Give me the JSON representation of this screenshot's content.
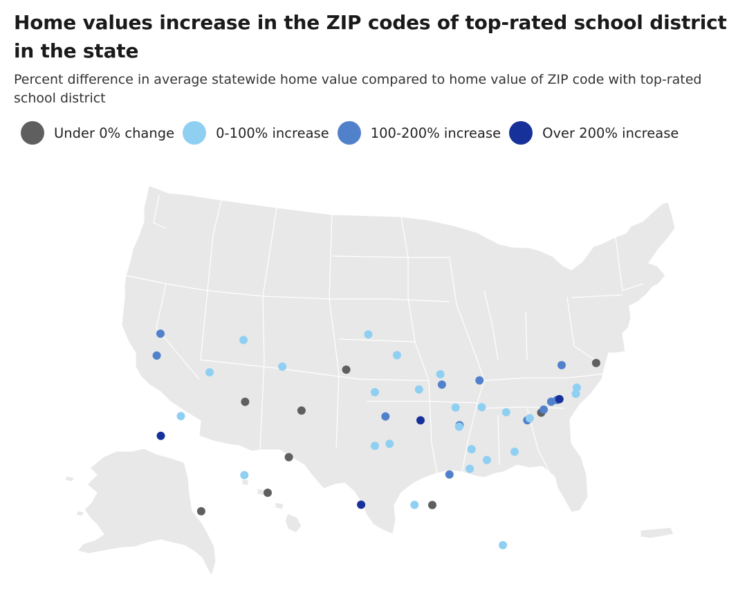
{
  "title": "Home values increase in the ZIP codes of top-rated school district in the state",
  "subtitle": "Percent difference in average statewide home value compared to home value of ZIP code with top-rated school district",
  "legend": [
    {
      "key": "under0",
      "label": "Under 0% change",
      "color": "#5f5f5f"
    },
    {
      "key": "0to100",
      "label": "0-100% increase",
      "color": "#8fd0f2"
    },
    {
      "key": "100to200",
      "label": "100-200% increase",
      "color": "#5281cc"
    },
    {
      "key": "over200",
      "label": "Over 200% increase",
      "color": "#17319a"
    }
  ],
  "map": {
    "region": "United States",
    "base_color": "#e8e8e8",
    "border_color": "#ffffff"
  },
  "locations": [
    {
      "state": "Washington",
      "lat": 47.6,
      "lon": -122.1,
      "category": "100to200"
    },
    {
      "state": "Oregon",
      "lat": 45.5,
      "lon": -122.6,
      "category": "100to200"
    },
    {
      "state": "California",
      "lat": 37.7,
      "lon": -122.3,
      "category": "over200"
    },
    {
      "state": "Nevada",
      "lat": 39.5,
      "lon": -119.8,
      "category": "0to100"
    },
    {
      "state": "Idaho",
      "lat": 43.6,
      "lon": -116.2,
      "category": "0to100"
    },
    {
      "state": "Montana",
      "lat": 46.6,
      "lon": -112.0,
      "category": "0to100"
    },
    {
      "state": "Wyoming",
      "lat": 43.9,
      "lon": -107.3,
      "category": "0to100"
    },
    {
      "state": "Utah",
      "lat": 40.6,
      "lon": -111.9,
      "category": "under0"
    },
    {
      "state": "Arizona",
      "lat": 33.5,
      "lon": -112.1,
      "category": "0to100"
    },
    {
      "state": "Colorado",
      "lat": 39.6,
      "lon": -105.0,
      "category": "under0"
    },
    {
      "state": "New Mexico",
      "lat": 35.1,
      "lon": -106.6,
      "category": "under0"
    },
    {
      "state": "North Dakota",
      "lat": 46.9,
      "lon": -96.8,
      "category": "0to100"
    },
    {
      "state": "South Dakota",
      "lat": 43.5,
      "lon": -99.5,
      "category": "under0"
    },
    {
      "state": "Nebraska",
      "lat": 41.3,
      "lon": -96.0,
      "category": "0to100"
    },
    {
      "state": "Kansas",
      "lat": 38.95,
      "lon": -94.7,
      "category": "100to200"
    },
    {
      "state": "Oklahoma",
      "lat": 36.1,
      "lon": -96.0,
      "category": "0to100"
    },
    {
      "state": "Texas",
      "lat": 30.4,
      "lon": -97.7,
      "category": "over200"
    },
    {
      "state": "Minnesota",
      "lat": 44.9,
      "lon": -93.3,
      "category": "0to100"
    },
    {
      "state": "Iowa",
      "lat": 41.6,
      "lon": -90.6,
      "category": "0to100"
    },
    {
      "state": "Missouri",
      "lat": 38.6,
      "lon": -90.4,
      "category": "over200"
    },
    {
      "state": "Arkansas",
      "lat": 36.3,
      "lon": -94.2,
      "category": "0to100"
    },
    {
      "state": "Louisiana",
      "lat": 30.4,
      "lon": -91.1,
      "category": "0to100"
    },
    {
      "state": "Wisconsin",
      "lat": 43.1,
      "lon": -88.0,
      "category": "0to100"
    },
    {
      "state": "Illinois",
      "lat": 42.1,
      "lon": -87.8,
      "category": "100to200"
    },
    {
      "state": "Michigan",
      "lat": 42.6,
      "lon": -83.2,
      "category": "100to200"
    },
    {
      "state": "Indiana",
      "lat": 39.9,
      "lon": -86.1,
      "category": "0to100"
    },
    {
      "state": "Ohio",
      "lat": 40.0,
      "lon": -82.9,
      "category": "0to100"
    },
    {
      "state": "Kentucky",
      "lat": 38.2,
      "lon": -85.6,
      "category": "100to200"
    },
    {
      "state": "Kentucky (2)",
      "lat": 38.05,
      "lon": -85.65,
      "category": "0to100"
    },
    {
      "state": "Tennessee",
      "lat": 35.9,
      "lon": -84.1,
      "category": "0to100"
    },
    {
      "state": "Mississippi",
      "lat": 30.4,
      "lon": -88.9,
      "category": "under0"
    },
    {
      "state": "Alabama",
      "lat": 33.4,
      "lon": -86.8,
      "category": "100to200"
    },
    {
      "state": "Georgia",
      "lat": 34.0,
      "lon": -84.3,
      "category": "0to100"
    },
    {
      "state": "Florida",
      "lat": 26.7,
      "lon": -80.1,
      "category": "0to100"
    },
    {
      "state": "South Carolina",
      "lat": 34.9,
      "lon": -82.2,
      "category": "0to100"
    },
    {
      "state": "North Carolina",
      "lat": 35.8,
      "lon": -78.8,
      "category": "0to100"
    },
    {
      "state": "Virginia",
      "lat": 38.9,
      "lon": -77.3,
      "category": "100to200"
    },
    {
      "state": "Maryland",
      "lat": 39.1,
      "lon": -77.0,
      "category": "0to100"
    },
    {
      "state": "West Virginia",
      "lat": 39.6,
      "lon": -79.9,
      "category": "0to100"
    },
    {
      "state": "Delaware",
      "lat": 39.7,
      "lon": -75.6,
      "category": "under0"
    },
    {
      "state": "Pennsylvania",
      "lat": 40.0,
      "lon": -75.3,
      "category": "100to200"
    },
    {
      "state": "New Jersey",
      "lat": 40.8,
      "lon": -74.4,
      "category": "100to200"
    },
    {
      "state": "New York",
      "lat": 41.0,
      "lon": -73.7,
      "category": "100to200"
    },
    {
      "state": "Connecticut",
      "lat": 41.1,
      "lon": -73.4,
      "category": "over200"
    },
    {
      "state": "Massachusetts",
      "lat": 42.3,
      "lon": -71.3,
      "category": "0to100"
    },
    {
      "state": "Rhode Island",
      "lat": 41.7,
      "lon": -71.4,
      "category": "0to100"
    },
    {
      "state": "Vermont",
      "lat": 44.4,
      "lon": -73.2,
      "category": "100to200"
    },
    {
      "state": "Maine",
      "lat": 44.8,
      "lon": -69.0,
      "category": "under0"
    },
    {
      "state": "Alaska",
      "lat": 61.2,
      "lon": -149.9,
      "category": "under0"
    },
    {
      "state": "Hawaii",
      "lat": 21.3,
      "lon": -157.8,
      "category": "under0"
    }
  ]
}
